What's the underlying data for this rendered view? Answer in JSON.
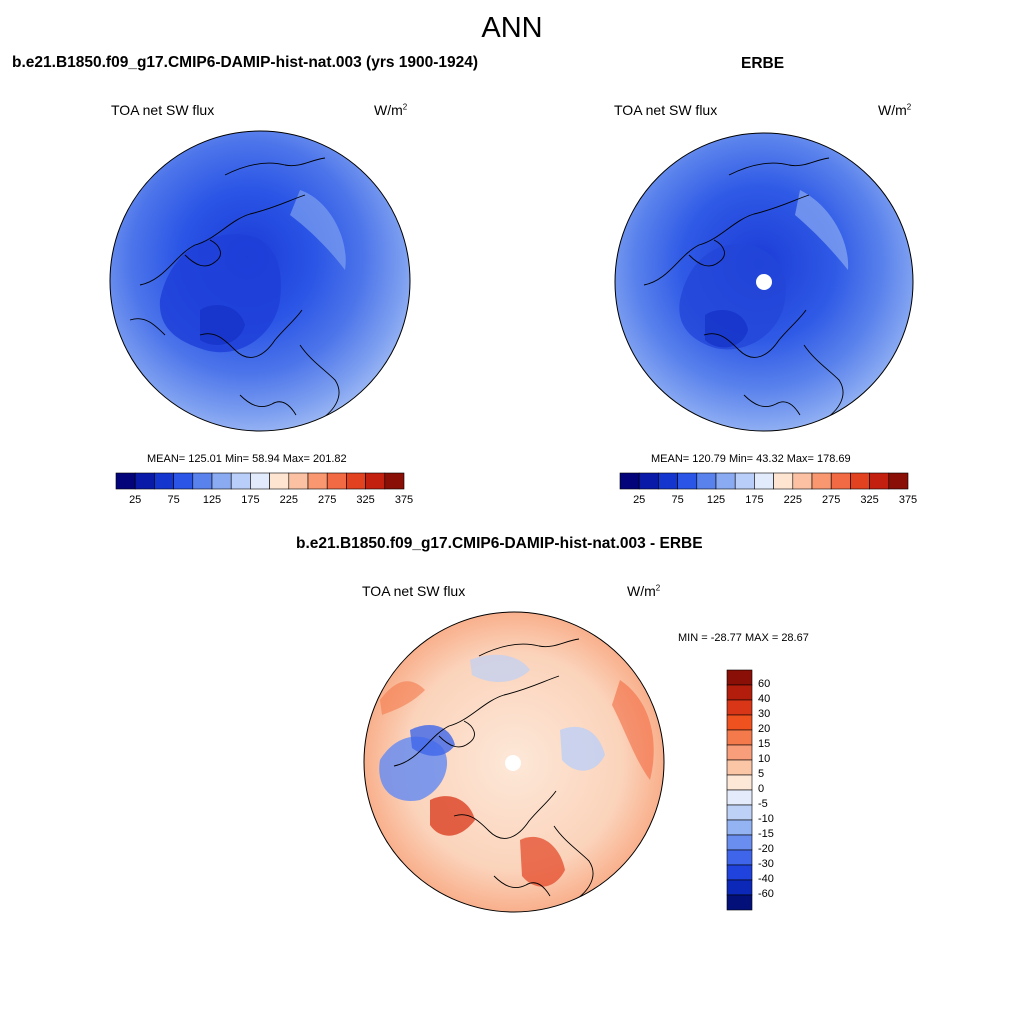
{
  "page": {
    "title": "ANN"
  },
  "panels": [
    {
      "case_title": "b.e21.B1850.f09_g17.CMIP6-DAMIP-hist-nat.003 (yrs 1900-1924)",
      "variable": "TOA net SW flux",
      "units_base": "W/m",
      "units_exp": "2",
      "stats": "MEAN= 125.01  Min=  58.94  Max= 201.82"
    },
    {
      "case_title": "ERBE",
      "variable": "TOA net SW flux",
      "units_base": "W/m",
      "units_exp": "2",
      "stats": "MEAN= 120.79  Min=  43.32  Max= 178.69"
    },
    {
      "case_title": "b.e21.B1850.f09_g17.CMIP6-DAMIP-hist-nat.003 - ERBE",
      "variable": "TOA net SW flux",
      "units_base": "W/m",
      "units_exp": "2",
      "stats": "MIN = -28.77 MAX =  28.67"
    }
  ],
  "abs_colorbar": {
    "ticks": [
      "25",
      "75",
      "125",
      "175",
      "225",
      "275",
      "325",
      "375"
    ],
    "colors": [
      "#03037a",
      "#0a1aa8",
      "#1436cf",
      "#2a55e6",
      "#5a82ec",
      "#8aaaf2",
      "#b9cef8",
      "#e1ebfb",
      "#fde5d2",
      "#fbc1a2",
      "#f89770",
      "#f26a43",
      "#e34221",
      "#c3200f",
      "#8a0f07"
    ]
  },
  "diff_colorbar": {
    "labels": [
      "60",
      "40",
      "30",
      "20",
      "15",
      "10",
      "5",
      "0",
      "-5",
      "-10",
      "-15",
      "-20",
      "-30",
      "-40",
      "-60"
    ],
    "colors": [
      "#8a0f07",
      "#b31e0c",
      "#d93618",
      "#f0521f",
      "#f47a4c",
      "#f89e7a",
      "#fbc6a6",
      "#fde8d8",
      "#e4ecfb",
      "#bdd0f6",
      "#93b3f2",
      "#6a8df0",
      "#3f66ea",
      "#1f43dc",
      "#0b28b8",
      "#04107a"
    ]
  },
  "colors": {
    "ocean_low": "#b9cef8",
    "ocean_mid": "#5a82ec",
    "ice_core": "#2346d8",
    "diff_neutral": "#fde8d8",
    "diff_warm": "#f47a4c",
    "diff_cool": "#93b3f2",
    "coastline": "#000000"
  },
  "icons": [
    "polar-stereographic-map"
  ]
}
